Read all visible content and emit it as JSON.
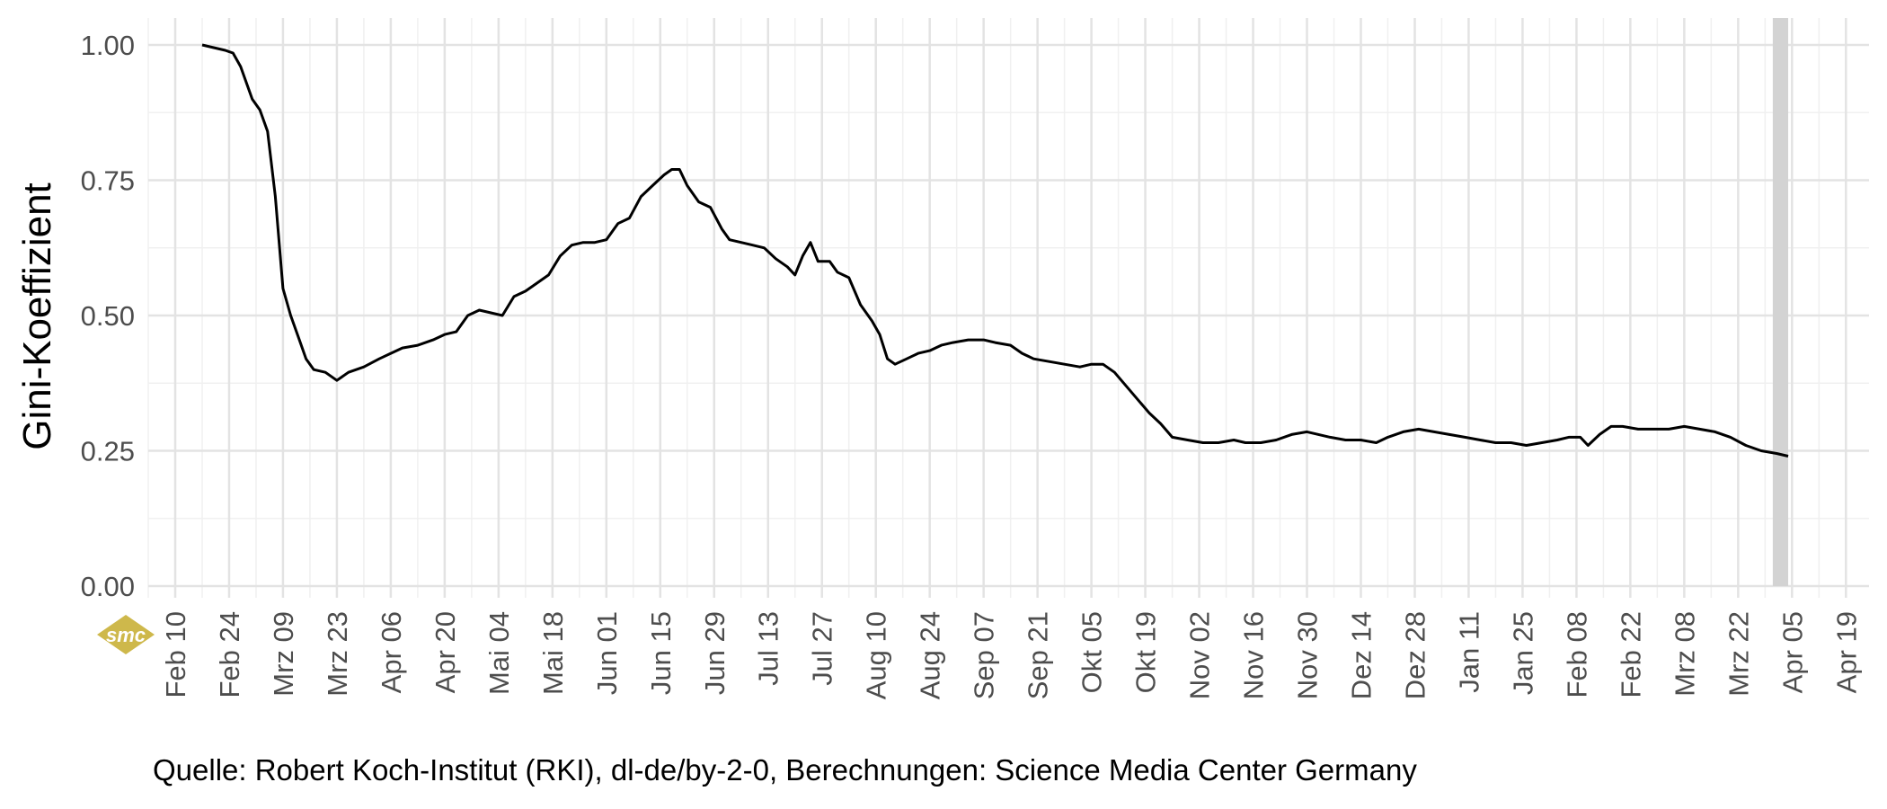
{
  "chart_data": {
    "type": "line",
    "title": "",
    "xlabel": "",
    "ylabel": "Gini-Koeffizient",
    "ylim": [
      0,
      1.05
    ],
    "y_ticks": [
      "0.00",
      "0.25",
      "0.50",
      "0.75",
      "1.00"
    ],
    "y_tick_values": [
      0,
      0.25,
      0.5,
      0.75,
      1.0
    ],
    "x_start": "2020-02-03",
    "x_end": "2021-04-25",
    "x_ticks": [
      {
        "date": "2020-02-10",
        "label": "Feb 10"
      },
      {
        "date": "2020-02-24",
        "label": "Feb 24"
      },
      {
        "date": "2020-03-09",
        "label": "Mrz 09"
      },
      {
        "date": "2020-03-23",
        "label": "Mrz 23"
      },
      {
        "date": "2020-04-06",
        "label": "Apr 06"
      },
      {
        "date": "2020-04-20",
        "label": "Apr 20"
      },
      {
        "date": "2020-05-04",
        "label": "Mai 04"
      },
      {
        "date": "2020-05-18",
        "label": "Mai 18"
      },
      {
        "date": "2020-06-01",
        "label": "Jun 01"
      },
      {
        "date": "2020-06-15",
        "label": "Jun 15"
      },
      {
        "date": "2020-06-29",
        "label": "Jun 29"
      },
      {
        "date": "2020-07-13",
        "label": "Jul 13"
      },
      {
        "date": "2020-07-27",
        "label": "Jul 27"
      },
      {
        "date": "2020-08-10",
        "label": "Aug 10"
      },
      {
        "date": "2020-08-24",
        "label": "Aug 24"
      },
      {
        "date": "2020-09-07",
        "label": "Sep 07"
      },
      {
        "date": "2020-09-21",
        "label": "Sep 21"
      },
      {
        "date": "2020-10-05",
        "label": "Okt 05"
      },
      {
        "date": "2020-10-19",
        "label": "Okt 19"
      },
      {
        "date": "2020-11-02",
        "label": "Nov 02"
      },
      {
        "date": "2020-11-16",
        "label": "Nov 16"
      },
      {
        "date": "2020-11-30",
        "label": "Nov 30"
      },
      {
        "date": "2020-12-14",
        "label": "Dez 14"
      },
      {
        "date": "2020-12-28",
        "label": "Dez 28"
      },
      {
        "date": "2021-01-11",
        "label": "Jan 11"
      },
      {
        "date": "2021-01-25",
        "label": "Jan 25"
      },
      {
        "date": "2021-02-08",
        "label": "Feb 08"
      },
      {
        "date": "2021-02-22",
        "label": "Feb 22"
      },
      {
        "date": "2021-03-08",
        "label": "Mrz 08"
      },
      {
        "date": "2021-03-22",
        "label": "Mrz 22"
      },
      {
        "date": "2021-04-05",
        "label": "Apr 05"
      },
      {
        "date": "2021-04-19",
        "label": "Apr 19"
      }
    ],
    "shaded_band": {
      "from": "2021-03-31",
      "to": "2021-04-04",
      "color": "#d3d3d3"
    },
    "grid": true,
    "series": [
      {
        "color": "#000000",
        "points": [
          [
            "2020-02-17",
            1.0
          ],
          [
            "2020-02-20",
            0.995
          ],
          [
            "2020-02-23",
            0.99
          ],
          [
            "2020-02-25",
            0.985
          ],
          [
            "2020-02-27",
            0.96
          ],
          [
            "2020-03-01",
            0.9
          ],
          [
            "2020-03-03",
            0.88
          ],
          [
            "2020-03-05",
            0.84
          ],
          [
            "2020-03-07",
            0.72
          ],
          [
            "2020-03-09",
            0.55
          ],
          [
            "2020-03-11",
            0.5
          ],
          [
            "2020-03-13",
            0.46
          ],
          [
            "2020-03-15",
            0.42
          ],
          [
            "2020-03-17",
            0.4
          ],
          [
            "2020-03-20",
            0.395
          ],
          [
            "2020-03-23",
            0.38
          ],
          [
            "2020-03-26",
            0.395
          ],
          [
            "2020-03-30",
            0.405
          ],
          [
            "2020-04-03",
            0.42
          ],
          [
            "2020-04-06",
            0.43
          ],
          [
            "2020-04-09",
            0.44
          ],
          [
            "2020-04-13",
            0.445
          ],
          [
            "2020-04-17",
            0.455
          ],
          [
            "2020-04-20",
            0.465
          ],
          [
            "2020-04-23",
            0.47
          ],
          [
            "2020-04-26",
            0.5
          ],
          [
            "2020-04-29",
            0.51
          ],
          [
            "2020-05-02",
            0.505
          ],
          [
            "2020-05-05",
            0.5
          ],
          [
            "2020-05-08",
            0.535
          ],
          [
            "2020-05-11",
            0.545
          ],
          [
            "2020-05-14",
            0.56
          ],
          [
            "2020-05-17",
            0.575
          ],
          [
            "2020-05-20",
            0.61
          ],
          [
            "2020-05-23",
            0.63
          ],
          [
            "2020-05-26",
            0.635
          ],
          [
            "2020-05-29",
            0.635
          ],
          [
            "2020-06-01",
            0.64
          ],
          [
            "2020-06-04",
            0.67
          ],
          [
            "2020-06-07",
            0.68
          ],
          [
            "2020-06-10",
            0.72
          ],
          [
            "2020-06-13",
            0.74
          ],
          [
            "2020-06-16",
            0.76
          ],
          [
            "2020-06-18",
            0.77
          ],
          [
            "2020-06-20",
            0.77
          ],
          [
            "2020-06-22",
            0.74
          ],
          [
            "2020-06-25",
            0.71
          ],
          [
            "2020-06-28",
            0.7
          ],
          [
            "2020-07-01",
            0.66
          ],
          [
            "2020-07-03",
            0.64
          ],
          [
            "2020-07-06",
            0.635
          ],
          [
            "2020-07-09",
            0.63
          ],
          [
            "2020-07-12",
            0.625
          ],
          [
            "2020-07-15",
            0.605
          ],
          [
            "2020-07-18",
            0.59
          ],
          [
            "2020-07-20",
            0.575
          ],
          [
            "2020-07-22",
            0.61
          ],
          [
            "2020-07-24",
            0.635
          ],
          [
            "2020-07-26",
            0.6
          ],
          [
            "2020-07-29",
            0.6
          ],
          [
            "2020-07-31",
            0.58
          ],
          [
            "2020-08-03",
            0.57
          ],
          [
            "2020-08-06",
            0.52
          ],
          [
            "2020-08-09",
            0.49
          ],
          [
            "2020-08-11",
            0.465
          ],
          [
            "2020-08-13",
            0.42
          ],
          [
            "2020-08-15",
            0.41
          ],
          [
            "2020-08-18",
            0.42
          ],
          [
            "2020-08-21",
            0.43
          ],
          [
            "2020-08-24",
            0.435
          ],
          [
            "2020-08-27",
            0.445
          ],
          [
            "2020-08-30",
            0.45
          ],
          [
            "2020-09-03",
            0.455
          ],
          [
            "2020-09-07",
            0.455
          ],
          [
            "2020-09-10",
            0.45
          ],
          [
            "2020-09-14",
            0.445
          ],
          [
            "2020-09-17",
            0.43
          ],
          [
            "2020-09-20",
            0.42
          ],
          [
            "2020-09-24",
            0.415
          ],
          [
            "2020-09-28",
            0.41
          ],
          [
            "2020-10-02",
            0.405
          ],
          [
            "2020-10-05",
            0.41
          ],
          [
            "2020-10-08",
            0.41
          ],
          [
            "2020-10-11",
            0.395
          ],
          [
            "2020-10-14",
            0.37
          ],
          [
            "2020-10-17",
            0.345
          ],
          [
            "2020-10-20",
            0.32
          ],
          [
            "2020-10-23",
            0.3
          ],
          [
            "2020-10-26",
            0.275
          ],
          [
            "2020-10-30",
            0.27
          ],
          [
            "2020-11-03",
            0.265
          ],
          [
            "2020-11-07",
            0.265
          ],
          [
            "2020-11-11",
            0.27
          ],
          [
            "2020-11-14",
            0.265
          ],
          [
            "2020-11-18",
            0.265
          ],
          [
            "2020-11-22",
            0.27
          ],
          [
            "2020-11-26",
            0.28
          ],
          [
            "2020-11-30",
            0.285
          ],
          [
            "2020-12-03",
            0.28
          ],
          [
            "2020-12-06",
            0.275
          ],
          [
            "2020-12-10",
            0.27
          ],
          [
            "2020-12-14",
            0.27
          ],
          [
            "2020-12-18",
            0.265
          ],
          [
            "2020-12-21",
            0.275
          ],
          [
            "2020-12-25",
            0.285
          ],
          [
            "2020-12-29",
            0.29
          ],
          [
            "2021-01-02",
            0.285
          ],
          [
            "2021-01-06",
            0.28
          ],
          [
            "2021-01-10",
            0.275
          ],
          [
            "2021-01-14",
            0.27
          ],
          [
            "2021-01-18",
            0.265
          ],
          [
            "2021-01-22",
            0.265
          ],
          [
            "2021-01-26",
            0.26
          ],
          [
            "2021-01-30",
            0.265
          ],
          [
            "2021-02-03",
            0.27
          ],
          [
            "2021-02-06",
            0.275
          ],
          [
            "2021-02-09",
            0.275
          ],
          [
            "2021-02-11",
            0.26
          ],
          [
            "2021-02-14",
            0.28
          ],
          [
            "2021-02-17",
            0.295
          ],
          [
            "2021-02-20",
            0.295
          ],
          [
            "2021-02-24",
            0.29
          ],
          [
            "2021-02-28",
            0.29
          ],
          [
            "2021-03-04",
            0.29
          ],
          [
            "2021-03-08",
            0.295
          ],
          [
            "2021-03-12",
            0.29
          ],
          [
            "2021-03-16",
            0.285
          ],
          [
            "2021-03-20",
            0.275
          ],
          [
            "2021-03-24",
            0.26
          ],
          [
            "2021-03-28",
            0.25
          ],
          [
            "2021-04-01",
            0.245
          ],
          [
            "2021-04-04",
            0.24
          ]
        ]
      }
    ]
  },
  "caption": "Quelle: Robert Koch-Institut (RKI), dl-de/by-2-0, Berechnungen: Science Media Center Germany",
  "logo": {
    "text": "smc",
    "color": "#c9b037"
  }
}
